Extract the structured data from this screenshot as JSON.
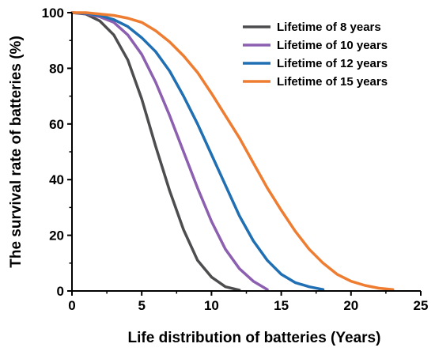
{
  "chart_data": {
    "type": "line",
    "title": "",
    "xlabel": "Life distribution of batteries (Years)",
    "ylabel": "The survival rate of batteries (%)",
    "xlim": [
      0,
      25
    ],
    "ylim": [
      0,
      100
    ],
    "x_ticks": [
      "0",
      "5",
      "10",
      "15",
      "20",
      "25"
    ],
    "y_ticks": [
      "0",
      "20",
      "40",
      "60",
      "80",
      "100"
    ],
    "grid": false,
    "legend_position": "top-right",
    "series": [
      {
        "name": "Lifetime of 8 years",
        "color": "#4d4d4f",
        "x": [
          0,
          1,
          2,
          3,
          4,
          5,
          6,
          7,
          8,
          9,
          10,
          11,
          12
        ],
        "y": [
          100,
          99.5,
          97,
          92,
          83,
          69,
          52,
          36,
          22,
          11,
          5,
          1.5,
          0.3
        ]
      },
      {
        "name": "Lifetime of 10 years",
        "color": "#8c5fb0",
        "x": [
          0,
          1,
          2,
          3,
          4,
          5,
          6,
          7,
          8,
          9,
          10,
          11,
          12,
          13,
          14
        ],
        "y": [
          100,
          99.7,
          98.5,
          96.5,
          92,
          85,
          75,
          63,
          50,
          37,
          25,
          15,
          8,
          3.5,
          0.5
        ]
      },
      {
        "name": "Lifetime of 12 years",
        "color": "#1f6fb2",
        "x": [
          0,
          1,
          2,
          3,
          4,
          5,
          6,
          7,
          8,
          9,
          10,
          11,
          12,
          13,
          14,
          15,
          16,
          17,
          18
        ],
        "y": [
          100,
          99.8,
          99,
          97.5,
          95,
          91,
          86,
          79,
          70,
          60,
          49,
          38,
          27,
          18,
          11,
          6,
          3,
          1.5,
          0.5
        ]
      },
      {
        "name": "Lifetime of 15 years",
        "color": "#ee7d31",
        "x": [
          0,
          1,
          2,
          3,
          4,
          5,
          6,
          7,
          8,
          9,
          10,
          11,
          12,
          13,
          14,
          15,
          16,
          17,
          18,
          19,
          20,
          21,
          22,
          23
        ],
        "y": [
          100,
          100,
          99.5,
          99,
          98,
          96.5,
          93.5,
          89.5,
          84.5,
          78.5,
          71,
          63,
          55,
          46,
          37,
          29,
          21.5,
          15,
          10,
          6,
          3.5,
          2,
          1,
          0.5
        ]
      }
    ]
  }
}
